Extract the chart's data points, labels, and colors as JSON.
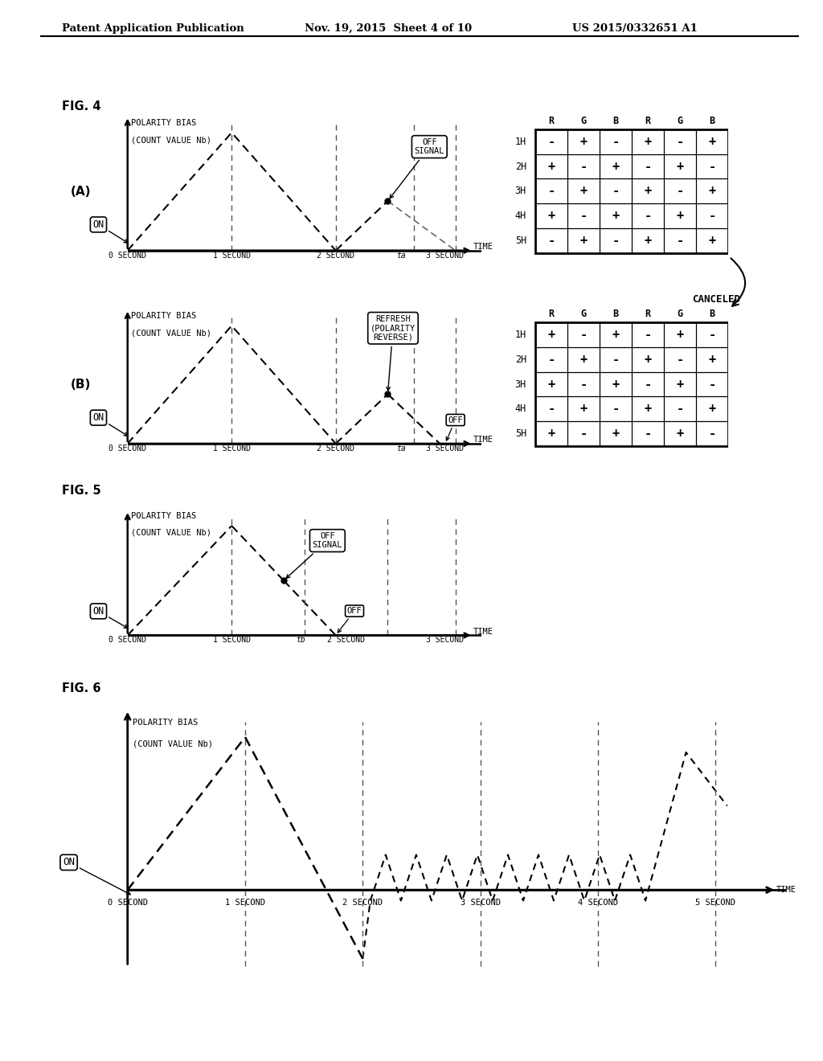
{
  "header_left": "Patent Application Publication",
  "header_mid": "Nov. 19, 2015  Sheet 4 of 10",
  "header_right": "US 2015/0332651 A1",
  "fig4_label": "FIG. 4",
  "fig5_label": "FIG. 5",
  "fig6_label": "FIG. 6",
  "bg_color": "#ffffff",
  "table_A_rows": [
    "1H",
    "2H",
    "3H",
    "4H",
    "5H"
  ],
  "table_A_cols": [
    "R",
    "G",
    "B",
    "R",
    "G",
    "B"
  ],
  "table_A_data": [
    [
      "-",
      "+",
      "-",
      "+",
      "-",
      "+"
    ],
    [
      "+",
      "-",
      "+",
      "-",
      "+",
      "-"
    ],
    [
      "-",
      "+",
      "-",
      "+",
      "-",
      "+"
    ],
    [
      "+",
      "-",
      "+",
      "-",
      "+",
      "-"
    ],
    [
      "-",
      "+",
      "-",
      "+",
      "-",
      "+"
    ]
  ],
  "table_B_rows": [
    "1H",
    "2H",
    "3H",
    "4H",
    "5H"
  ],
  "table_B_cols": [
    "R",
    "G",
    "B",
    "R",
    "G",
    "B"
  ],
  "table_B_data": [
    [
      "+",
      "-",
      "+",
      "-",
      "+",
      "-"
    ],
    [
      "-",
      "+",
      "-",
      "+",
      "-",
      "+"
    ],
    [
      "+",
      "-",
      "+",
      "-",
      "+",
      "-"
    ],
    [
      "-",
      "+",
      "-",
      "+",
      "-",
      "+"
    ],
    [
      "+",
      "-",
      "+",
      "-",
      "+",
      "-"
    ]
  ]
}
